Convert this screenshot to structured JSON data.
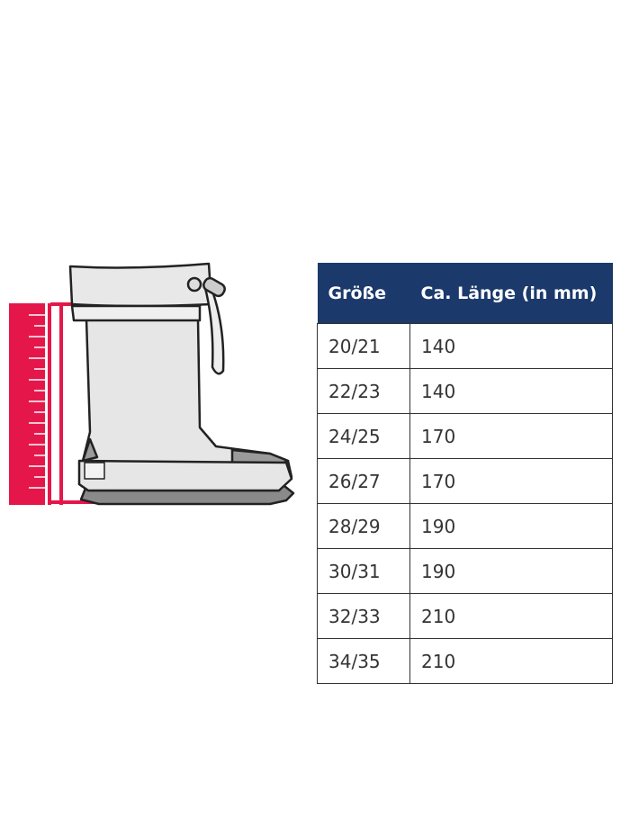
{
  "table": {
    "header": [
      "Größe",
      "Ca. Länge (in mm)"
    ],
    "rows": [
      [
        "20/21",
        140
      ],
      [
        "22/23",
        140
      ],
      [
        "24/25",
        170
      ],
      [
        "26/27",
        170
      ],
      [
        "28/29",
        190
      ],
      [
        "30/31",
        190
      ],
      [
        "32/33",
        210
      ],
      [
        "34/35",
        210
      ]
    ]
  }
}
